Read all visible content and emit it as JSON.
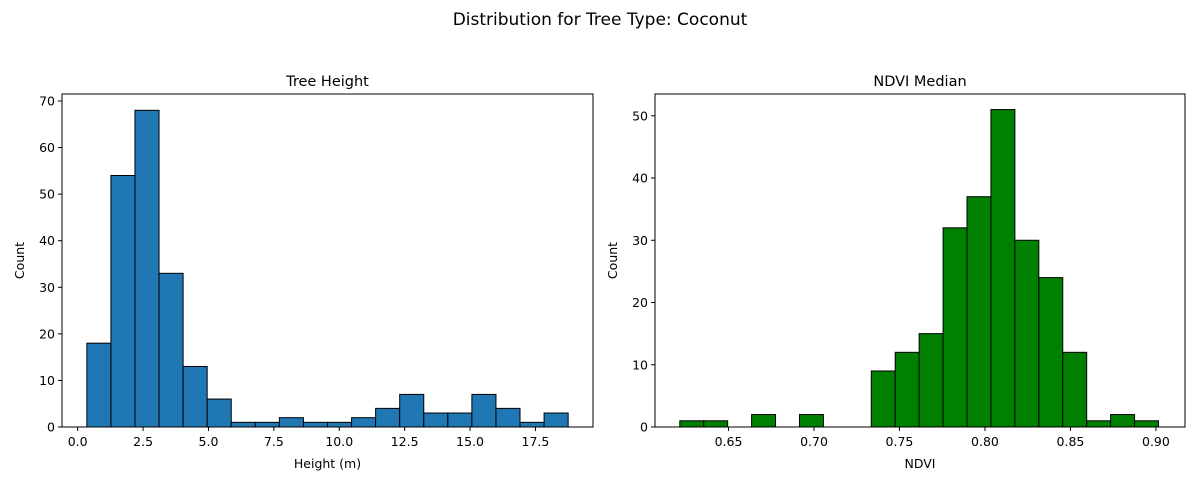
{
  "suptitle": "Distribution for Tree Type: Coconut",
  "chart_data": [
    {
      "type": "bar",
      "title": "Tree Height",
      "xlabel": "Height (m)",
      "ylabel": "Count",
      "color": "#1f77b4",
      "bin_start": 0.35,
      "bin_width": 0.92,
      "counts": [
        18,
        54,
        68,
        33,
        13,
        6,
        1,
        1,
        2,
        1,
        1,
        2,
        4,
        7,
        3,
        3,
        7,
        4,
        1,
        3
      ],
      "xlim": [
        -0.6,
        19.7
      ],
      "ylim": [
        0,
        71.5
      ],
      "xticks": [
        0.0,
        2.5,
        5.0,
        7.5,
        10.0,
        12.5,
        15.0,
        17.5
      ],
      "xtick_labels": [
        "0.0",
        "2.5",
        "5.0",
        "7.5",
        "10.0",
        "12.5",
        "15.0",
        "17.5"
      ],
      "yticks": [
        0,
        10,
        20,
        30,
        40,
        50,
        60,
        70
      ],
      "ytick_labels": [
        "0",
        "10",
        "20",
        "30",
        "40",
        "50",
        "60",
        "70"
      ],
      "grid": false,
      "legend": "none"
    },
    {
      "type": "bar",
      "title": "NDVI Median",
      "xlabel": "NDVI",
      "ylabel": "Count",
      "color": "#008000",
      "bin_start": 0.6215,
      "bin_width": 0.014,
      "counts": [
        1,
        1,
        0,
        2,
        0,
        2,
        0,
        0,
        9,
        12,
        15,
        32,
        37,
        51,
        30,
        24,
        12,
        1,
        2,
        1
      ],
      "xlim": [
        0.607,
        0.917
      ],
      "ylim": [
        0,
        53.5
      ],
      "xticks": [
        0.65,
        0.7,
        0.75,
        0.8,
        0.85,
        0.9
      ],
      "xtick_labels": [
        "0.65",
        "0.70",
        "0.75",
        "0.80",
        "0.85",
        "0.90"
      ],
      "yticks": [
        0,
        10,
        20,
        30,
        40,
        50
      ],
      "ytick_labels": [
        "0",
        "10",
        "20",
        "30",
        "40",
        "50"
      ],
      "grid": false,
      "legend": "none"
    }
  ]
}
